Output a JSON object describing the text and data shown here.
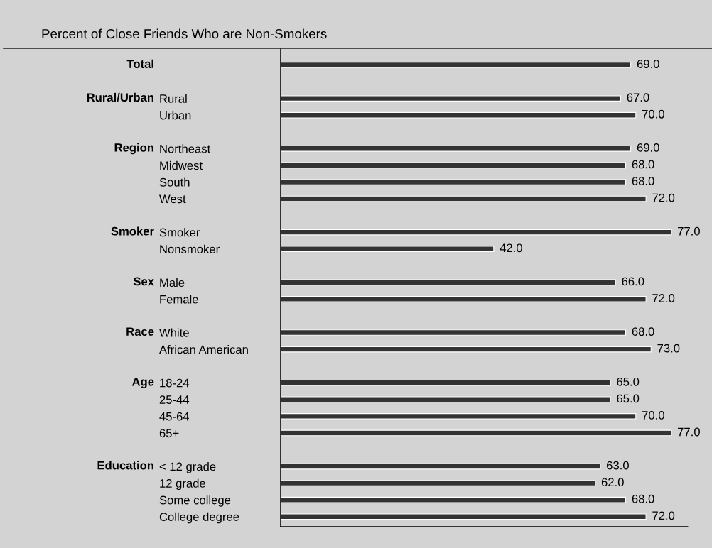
{
  "chart_data": {
    "type": "bar",
    "orientation": "horizontal",
    "title": "Percent of Close Friends Who are Non-Smokers",
    "categories": [
      null,
      null,
      "Rural",
      "Urban",
      null,
      "Northeast",
      "Midwest",
      "South",
      "West",
      null,
      "Smoker",
      "Nonsmoker",
      null,
      "Male",
      "Female",
      null,
      "White",
      "African American",
      null,
      "18-24",
      "25-44",
      "45-64",
      "65+",
      null,
      "< 12 grade",
      "12 grade",
      "Some college",
      "College degree"
    ],
    "values": [
      69.0,
      null,
      67.0,
      70.0,
      null,
      69.0,
      68.0,
      68.0,
      72.0,
      null,
      77.0,
      42.0,
      null,
      66.0,
      72.0,
      null,
      68.0,
      73.0,
      null,
      65.0,
      65.0,
      70.0,
      77.0,
      null,
      63.0,
      62.0,
      68.0,
      72.0
    ],
    "color": "#333333",
    "value_labels": [
      "69.0",
      null,
      "67.0",
      "70.0",
      null,
      "69.0",
      "68.0",
      "68.0",
      "72.0",
      null,
      "77.0",
      "42.0",
      null,
      "66.0",
      "72.0",
      null,
      "68.0",
      "73.0",
      null,
      "65.0",
      "65.0",
      "70.0",
      "77.0",
      null,
      "63.0",
      "62.0",
      "68.0",
      "72.0"
    ],
    "grid": false,
    "legend": false,
    "annotations": [
      "Total",
      "Rural/Urban",
      "Region",
      "Smoker",
      "Sex",
      "Race",
      "Age",
      "Education"
    ]
  }
}
